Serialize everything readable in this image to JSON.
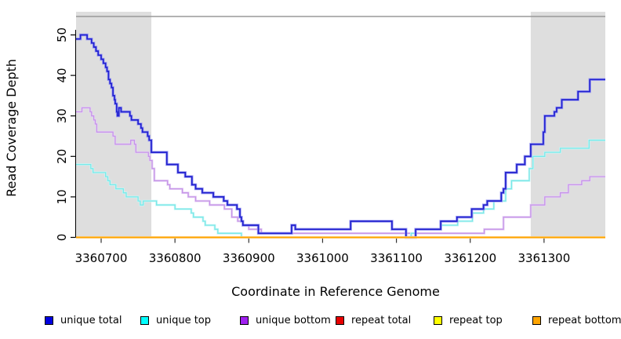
{
  "chart_data": {
    "type": "line",
    "step": true,
    "title": "",
    "xlabel": "Coordinate in Reference Genome",
    "ylabel": "Read Coverage Depth",
    "xlim": [
      3360666,
      3361383
    ],
    "ylim": [
      0,
      54.5
    ],
    "xticks": [
      3360700,
      3360800,
      3360900,
      3361000,
      3361100,
      3361200,
      3361300
    ],
    "yticks": [
      0,
      10,
      20,
      30,
      40,
      50
    ],
    "grid": false,
    "legend_position": "bottom",
    "top_border_color": "#999999",
    "shaded_regions": [
      {
        "x0": 3360666,
        "x1": 3360768,
        "color": "#dedede"
      },
      {
        "x0": 3361282,
        "x1": 3361383,
        "color": "#dedede"
      }
    ],
    "series": [
      {
        "name": "unique bottom",
        "color": "#c695e8",
        "halo": "#e6d2f5",
        "width": 1.3,
        "halo_width": 2.8,
        "points": [
          [
            3360666,
            31
          ],
          [
            3360674,
            32
          ],
          [
            3360685,
            31
          ],
          [
            3360687,
            30
          ],
          [
            3360690,
            29
          ],
          [
            3360692,
            28
          ],
          [
            3360694,
            26
          ],
          [
            3360716,
            25
          ],
          [
            3360719,
            23
          ],
          [
            3360740,
            24
          ],
          [
            3360745,
            23
          ],
          [
            3360747,
            21
          ],
          [
            3360764,
            20
          ],
          [
            3360766,
            19
          ],
          [
            3360769,
            17
          ],
          [
            3360772,
            14
          ],
          [
            3360790,
            13
          ],
          [
            3360793,
            12
          ],
          [
            3360810,
            11
          ],
          [
            3360818,
            10
          ],
          [
            3360828,
            9
          ],
          [
            3360847,
            8
          ],
          [
            3360867,
            7
          ],
          [
            3360877,
            5
          ],
          [
            3360885,
            4
          ],
          [
            3360892,
            3
          ],
          [
            3360900,
            2
          ],
          [
            3360917,
            1
          ],
          [
            3361219,
            2
          ],
          [
            3361245,
            5
          ],
          [
            3361282,
            8
          ],
          [
            3361301,
            10
          ],
          [
            3361322,
            11
          ],
          [
            3361333,
            13
          ],
          [
            3361351,
            14
          ],
          [
            3361362,
            15
          ],
          [
            3361383,
            15
          ]
        ]
      },
      {
        "name": "unique top",
        "color": "#7ae8e8",
        "halo": "#c9f6f6",
        "width": 1.3,
        "halo_width": 2.8,
        "points": [
          [
            3360666,
            18
          ],
          [
            3360686,
            17
          ],
          [
            3360689,
            16
          ],
          [
            3360706,
            15
          ],
          [
            3360709,
            14
          ],
          [
            3360712,
            13
          ],
          [
            3360720,
            12
          ],
          [
            3360730,
            11
          ],
          [
            3360734,
            10
          ],
          [
            3360750,
            9
          ],
          [
            3360753,
            8
          ],
          [
            3360757,
            9
          ],
          [
            3360775,
            8
          ],
          [
            3360800,
            7
          ],
          [
            3360822,
            6
          ],
          [
            3360825,
            5
          ],
          [
            3360838,
            4
          ],
          [
            3360841,
            3
          ],
          [
            3360854,
            2
          ],
          [
            3360858,
            1
          ],
          [
            3360890,
            0
          ],
          [
            3361120,
            1
          ],
          [
            3361126,
            2
          ],
          [
            3361160,
            3
          ],
          [
            3361183,
            4
          ],
          [
            3361203,
            6
          ],
          [
            3361218,
            7
          ],
          [
            3361232,
            9
          ],
          [
            3361248,
            12
          ],
          [
            3361256,
            14
          ],
          [
            3361280,
            17
          ],
          [
            3361285,
            20
          ],
          [
            3361301,
            21
          ],
          [
            3361322,
            22
          ],
          [
            3361361,
            24
          ],
          [
            3361383,
            24
          ]
        ]
      },
      {
        "name": "unique total",
        "color": "#2222cf",
        "halo": "#9d9df2",
        "width": 1.7,
        "halo_width": 3.4,
        "points": [
          [
            3360666,
            49
          ],
          [
            3360672,
            50
          ],
          [
            3360681,
            49
          ],
          [
            3360687,
            48
          ],
          [
            3360690,
            47
          ],
          [
            3360693,
            46
          ],
          [
            3360696,
            45
          ],
          [
            3360700,
            44
          ],
          [
            3360703,
            43
          ],
          [
            3360706,
            42
          ],
          [
            3360708,
            41
          ],
          [
            3360710,
            39
          ],
          [
            3360712,
            38
          ],
          [
            3360714,
            37
          ],
          [
            3360716,
            35
          ],
          [
            3360718,
            34
          ],
          [
            3360719,
            33
          ],
          [
            3360721,
            31
          ],
          [
            3360722,
            30
          ],
          [
            3360724,
            32
          ],
          [
            3360727,
            31
          ],
          [
            3360739,
            30
          ],
          [
            3360741,
            29
          ],
          [
            3360750,
            28
          ],
          [
            3360754,
            27
          ],
          [
            3360756,
            26
          ],
          [
            3360763,
            25
          ],
          [
            3360765,
            24
          ],
          [
            3360768,
            21
          ],
          [
            3360789,
            18
          ],
          [
            3360804,
            16
          ],
          [
            3360814,
            15
          ],
          [
            3360823,
            13
          ],
          [
            3360828,
            12
          ],
          [
            3360837,
            11
          ],
          [
            3360852,
            10
          ],
          [
            3360866,
            9
          ],
          [
            3360871,
            8
          ],
          [
            3360884,
            7
          ],
          [
            3360888,
            5
          ],
          [
            3360890,
            4
          ],
          [
            3360892,
            3
          ],
          [
            3360913,
            1
          ],
          [
            3360958,
            3
          ],
          [
            3360963,
            2
          ],
          [
            3361038,
            4
          ],
          [
            3361094,
            2
          ],
          [
            3361113,
            0
          ],
          [
            3361126,
            2
          ],
          [
            3361160,
            4
          ],
          [
            3361182,
            5
          ],
          [
            3361202,
            7
          ],
          [
            3361218,
            8
          ],
          [
            3361223,
            9
          ],
          [
            3361242,
            11
          ],
          [
            3361245,
            12
          ],
          [
            3361248,
            16
          ],
          [
            3361263,
            18
          ],
          [
            3361274,
            20
          ],
          [
            3361282,
            23
          ],
          [
            3361299,
            26
          ],
          [
            3361301,
            30
          ],
          [
            3361314,
            31
          ],
          [
            3361317,
            32
          ],
          [
            3361324,
            34
          ],
          [
            3361346,
            36
          ],
          [
            3361362,
            39
          ],
          [
            3361383,
            39
          ]
        ]
      },
      {
        "name": "repeat total",
        "color": "#e80000",
        "halo": "#f5b0b0",
        "width": 1.3,
        "halo_width": 2.4,
        "points": [
          [
            3360666,
            0
          ],
          [
            3361383,
            0
          ]
        ]
      },
      {
        "name": "repeat top",
        "color": "#ffff00",
        "halo": "#ffffb0",
        "width": 1.3,
        "halo_width": 2.4,
        "points": [
          [
            3360666,
            0
          ],
          [
            3361383,
            0
          ]
        ]
      },
      {
        "name": "repeat bottom",
        "color": "#ffa500",
        "halo": "#ffd08a",
        "width": 1.7,
        "halo_width": 2.6,
        "points": [
          [
            3360666,
            0
          ],
          [
            3361383,
            0
          ]
        ]
      }
    ]
  },
  "legend": {
    "items": [
      {
        "label": "unique total",
        "color": "#0000e0"
      },
      {
        "label": "unique top",
        "color": "#00ffff"
      },
      {
        "label": "unique bottom",
        "color": "#a020f0"
      },
      {
        "label": "repeat total",
        "color": "#e80000"
      },
      {
        "label": "repeat top",
        "color": "#ffff00"
      },
      {
        "label": "repeat bottom",
        "color": "#ffa500"
      }
    ]
  }
}
